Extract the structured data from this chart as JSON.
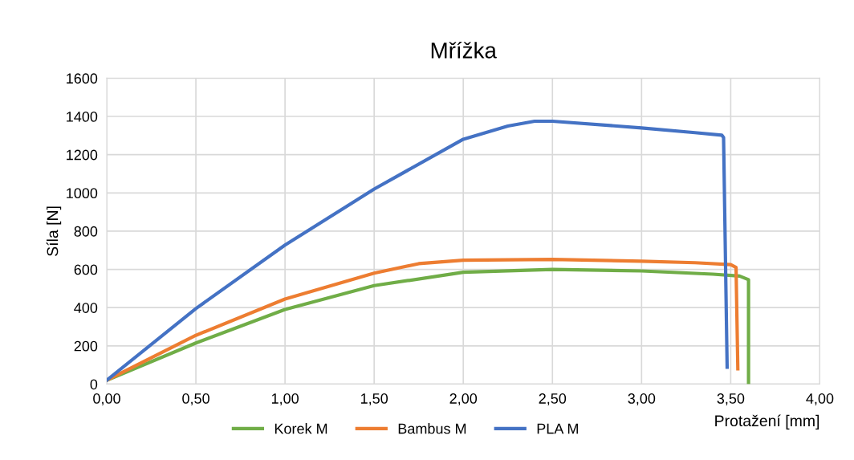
{
  "chart_data": {
    "type": "line",
    "title": "Mřížka",
    "xlabel": "Protažení [mm]",
    "ylabel": "Síla [N]",
    "xlim": [
      0,
      4
    ],
    "ylim": [
      0,
      1600
    ],
    "xticks": [
      {
        "value": 0,
        "label": "0,00"
      },
      {
        "value": 0.5,
        "label": "0,50"
      },
      {
        "value": 1,
        "label": "1,00"
      },
      {
        "value": 1.5,
        "label": "1,50"
      },
      {
        "value": 2,
        "label": "2,00"
      },
      {
        "value": 2.5,
        "label": "2,50"
      },
      {
        "value": 3,
        "label": "3,00"
      },
      {
        "value": 3.5,
        "label": "3,50"
      },
      {
        "value": 4,
        "label": "4,00"
      }
    ],
    "yticks": [
      0,
      200,
      400,
      600,
      800,
      1000,
      1200,
      1400,
      1600
    ],
    "grid": true,
    "legend": "bottom",
    "marker": "none",
    "line_style": "solid",
    "series": [
      {
        "name": "Korek M",
        "color": "#70ad47",
        "x": [
          0,
          0.5,
          1.0,
          1.5,
          2.0,
          2.5,
          3.0,
          3.4,
          3.55,
          3.6,
          3.6
        ],
        "values": [
          20,
          215,
          390,
          515,
          585,
          600,
          592,
          575,
          565,
          546,
          8
        ]
      },
      {
        "name": "Bambus M",
        "color": "#ed7d31",
        "x": [
          0,
          0.5,
          1.0,
          1.5,
          1.75,
          2.0,
          2.5,
          3.0,
          3.3,
          3.5,
          3.53,
          3.54
        ],
        "values": [
          20,
          255,
          445,
          580,
          630,
          648,
          652,
          643,
          635,
          625,
          610,
          80
        ]
      },
      {
        "name": "PLA M",
        "color": "#4472c4",
        "x": [
          0,
          0.5,
          1.0,
          1.5,
          2.0,
          2.25,
          2.4,
          2.5,
          3.0,
          3.3,
          3.45,
          3.46,
          3.48
        ],
        "values": [
          20,
          395,
          727,
          1020,
          1281,
          1350,
          1375,
          1375,
          1340,
          1315,
          1302,
          1290,
          88
        ]
      }
    ]
  }
}
